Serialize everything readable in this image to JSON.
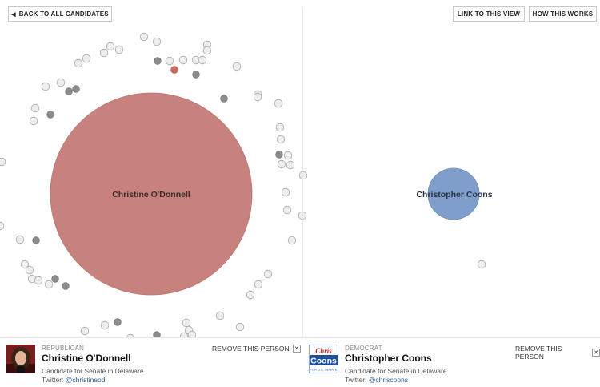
{
  "toolbar": {
    "back_label": "BACK TO ALL CANDIDATES",
    "link_label": "LINK TO THIS VIEW",
    "how_label": "HOW THIS WORKS"
  },
  "colors": {
    "republican": "#c8827e",
    "democrat": "#7f9ecb",
    "node_light": "#eeeeee",
    "node_dark": "#8c8c8c",
    "node_red": "#d46a64"
  },
  "bubbles": {
    "left_label": "Christine O'Donnell",
    "right_label": "Christopher Coons"
  },
  "cards": [
    {
      "party": "REPUBLICAN",
      "name": "Christine O'Donnell",
      "description": "Candidate for Senate in Delaware",
      "twitter_prefix": "Twitter: ",
      "twitter_handle": "@christineod",
      "remove_label": "REMOVE THIS PERSON",
      "close_glyph": "✕"
    },
    {
      "party": "DEMOCRAT",
      "name": "Christopher Coons",
      "description": "Candidate for Senate in Delaware",
      "twitter_prefix": "Twitter: ",
      "twitter_handle": "@chriscoons",
      "remove_label": "REMOVE THIS PERSON",
      "close_glyph": "✕",
      "logo_text": [
        "Chris",
        "Coons",
        "FOR U.S. SENATE"
      ]
    }
  ]
}
